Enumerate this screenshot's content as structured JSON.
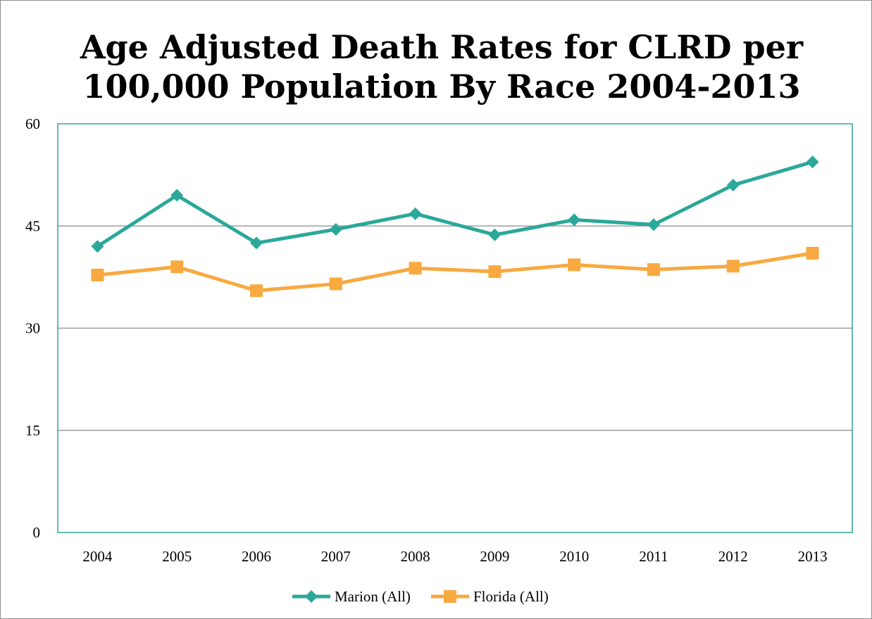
{
  "chart_data": {
    "type": "line",
    "title": [
      "Age Adjusted Death Rates for CLRD per",
      "100,000 Population By Race 2004-2013"
    ],
    "xlabel": "",
    "ylabel": "",
    "categories": [
      "2004",
      "2005",
      "2006",
      "2007",
      "2008",
      "2009",
      "2010",
      "2011",
      "2012",
      "2013"
    ],
    "ylim": [
      0,
      60
    ],
    "yticks": [
      "0",
      "15",
      "30",
      "45",
      "60"
    ],
    "grid": true,
    "legend_position": "bottom",
    "series": [
      {
        "name": "Marion (All)",
        "color": "#2aa89a",
        "marker": "diamond",
        "values": [
          42.0,
          49.5,
          42.5,
          44.5,
          46.8,
          43.7,
          45.9,
          45.2,
          51.0,
          54.4
        ]
      },
      {
        "name": "Florida (All)",
        "color": "#f8a93f",
        "marker": "square",
        "values": [
          37.8,
          39.0,
          35.5,
          36.5,
          38.8,
          38.3,
          39.3,
          38.6,
          39.1,
          41.0
        ]
      }
    ],
    "colors": {
      "gridline": "#8c8c8c",
      "plot_border": "#2aa89a"
    }
  }
}
